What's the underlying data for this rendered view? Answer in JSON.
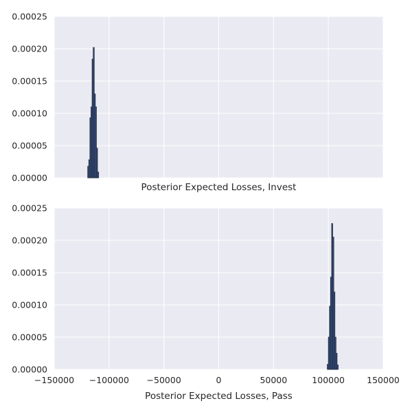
{
  "chart_data": [
    {
      "type": "histogram",
      "xlabel": "Posterior Expected Losses, Invest",
      "ylabel": "",
      "xlim": [
        -150000,
        150000
      ],
      "ylim": [
        0,
        0.00025
      ],
      "grid": true,
      "show_x_tick_labels": false,
      "x_ticks": [
        -150000,
        -100000,
        -50000,
        0,
        50000,
        100000,
        150000
      ],
      "y_ticks": [
        "0.00000",
        "0.00005",
        "0.00010",
        "0.00015",
        "0.00020",
        "0.00025"
      ],
      "bar_color": "#34528f",
      "bin_width": 1000,
      "bins": [
        {
          "x": -119000,
          "value": 1.8e-05
        },
        {
          "x": -118000,
          "value": 2.8e-05
        },
        {
          "x": -117000,
          "value": 9.3e-05
        },
        {
          "x": -116000,
          "value": 0.00011
        },
        {
          "x": -115000,
          "value": 0.000184
        },
        {
          "x": -114000,
          "value": 0.000202
        },
        {
          "x": -113000,
          "value": 0.00013
        },
        {
          "x": -112000,
          "value": 0.00011
        },
        {
          "x": -111000,
          "value": 4.6e-05
        },
        {
          "x": -110000,
          "value": 9e-06
        }
      ]
    },
    {
      "type": "histogram",
      "xlabel": "Posterior Expected Losses, Pass",
      "ylabel": "",
      "xlim": [
        -150000,
        150000
      ],
      "ylim": [
        0,
        0.00025
      ],
      "grid": true,
      "show_x_tick_labels": true,
      "x_ticks": [
        -150000,
        -100000,
        -50000,
        0,
        50000,
        100000,
        150000
      ],
      "x_tick_labels": [
        "−150000",
        "−100000",
        "−50000",
        "0",
        "50000",
        "100000",
        "150000"
      ],
      "y_ticks": [
        "0.00000",
        "0.00005",
        "0.00010",
        "0.00015",
        "0.00020",
        "0.00025"
      ],
      "bar_color": "#34528f",
      "bin_width": 1000,
      "bins": [
        {
          "x": 99500,
          "value": 8e-06
        },
        {
          "x": 100500,
          "value": 5e-05
        },
        {
          "x": 101500,
          "value": 9.8e-05
        },
        {
          "x": 102500,
          "value": 0.000143
        },
        {
          "x": 103500,
          "value": 0.000226
        },
        {
          "x": 104500,
          "value": 0.000205
        },
        {
          "x": 105500,
          "value": 0.00012
        },
        {
          "x": 106500,
          "value": 5e-05
        },
        {
          "x": 107500,
          "value": 2.5e-05
        },
        {
          "x": 108500,
          "value": 7e-06
        }
      ]
    }
  ]
}
